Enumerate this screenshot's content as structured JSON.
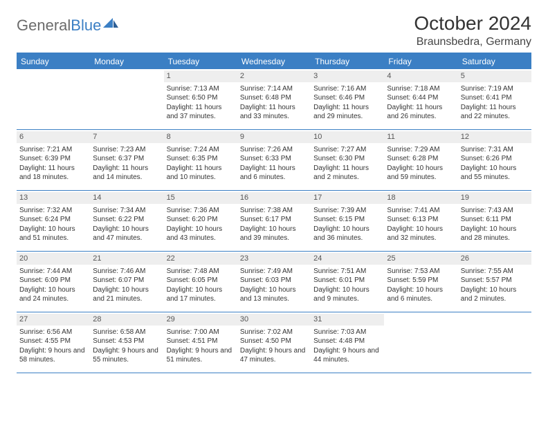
{
  "logo": {
    "text_gray": "General",
    "text_blue": "Blue"
  },
  "title": {
    "month": "October 2024",
    "location": "Braunsbedra, Germany"
  },
  "colors": {
    "header_bg": "#3b7fc4",
    "header_text": "#ffffff",
    "daynum_bg": "#eeeeee",
    "border": "#3b7fc4",
    "body_text": "#333333",
    "logo_gray": "#6b6b6b"
  },
  "weekdays": [
    "Sunday",
    "Monday",
    "Tuesday",
    "Wednesday",
    "Thursday",
    "Friday",
    "Saturday"
  ],
  "weeks": [
    [
      {
        "n": "",
        "sr": "",
        "ss": "",
        "dl": ""
      },
      {
        "n": "",
        "sr": "",
        "ss": "",
        "dl": ""
      },
      {
        "n": "1",
        "sr": "Sunrise: 7:13 AM",
        "ss": "Sunset: 6:50 PM",
        "dl": "Daylight: 11 hours and 37 minutes."
      },
      {
        "n": "2",
        "sr": "Sunrise: 7:14 AM",
        "ss": "Sunset: 6:48 PM",
        "dl": "Daylight: 11 hours and 33 minutes."
      },
      {
        "n": "3",
        "sr": "Sunrise: 7:16 AM",
        "ss": "Sunset: 6:46 PM",
        "dl": "Daylight: 11 hours and 29 minutes."
      },
      {
        "n": "4",
        "sr": "Sunrise: 7:18 AM",
        "ss": "Sunset: 6:44 PM",
        "dl": "Daylight: 11 hours and 26 minutes."
      },
      {
        "n": "5",
        "sr": "Sunrise: 7:19 AM",
        "ss": "Sunset: 6:41 PM",
        "dl": "Daylight: 11 hours and 22 minutes."
      }
    ],
    [
      {
        "n": "6",
        "sr": "Sunrise: 7:21 AM",
        "ss": "Sunset: 6:39 PM",
        "dl": "Daylight: 11 hours and 18 minutes."
      },
      {
        "n": "7",
        "sr": "Sunrise: 7:23 AM",
        "ss": "Sunset: 6:37 PM",
        "dl": "Daylight: 11 hours and 14 minutes."
      },
      {
        "n": "8",
        "sr": "Sunrise: 7:24 AM",
        "ss": "Sunset: 6:35 PM",
        "dl": "Daylight: 11 hours and 10 minutes."
      },
      {
        "n": "9",
        "sr": "Sunrise: 7:26 AM",
        "ss": "Sunset: 6:33 PM",
        "dl": "Daylight: 11 hours and 6 minutes."
      },
      {
        "n": "10",
        "sr": "Sunrise: 7:27 AM",
        "ss": "Sunset: 6:30 PM",
        "dl": "Daylight: 11 hours and 2 minutes."
      },
      {
        "n": "11",
        "sr": "Sunrise: 7:29 AM",
        "ss": "Sunset: 6:28 PM",
        "dl": "Daylight: 10 hours and 59 minutes."
      },
      {
        "n": "12",
        "sr": "Sunrise: 7:31 AM",
        "ss": "Sunset: 6:26 PM",
        "dl": "Daylight: 10 hours and 55 minutes."
      }
    ],
    [
      {
        "n": "13",
        "sr": "Sunrise: 7:32 AM",
        "ss": "Sunset: 6:24 PM",
        "dl": "Daylight: 10 hours and 51 minutes."
      },
      {
        "n": "14",
        "sr": "Sunrise: 7:34 AM",
        "ss": "Sunset: 6:22 PM",
        "dl": "Daylight: 10 hours and 47 minutes."
      },
      {
        "n": "15",
        "sr": "Sunrise: 7:36 AM",
        "ss": "Sunset: 6:20 PM",
        "dl": "Daylight: 10 hours and 43 minutes."
      },
      {
        "n": "16",
        "sr": "Sunrise: 7:38 AM",
        "ss": "Sunset: 6:17 PM",
        "dl": "Daylight: 10 hours and 39 minutes."
      },
      {
        "n": "17",
        "sr": "Sunrise: 7:39 AM",
        "ss": "Sunset: 6:15 PM",
        "dl": "Daylight: 10 hours and 36 minutes."
      },
      {
        "n": "18",
        "sr": "Sunrise: 7:41 AM",
        "ss": "Sunset: 6:13 PM",
        "dl": "Daylight: 10 hours and 32 minutes."
      },
      {
        "n": "19",
        "sr": "Sunrise: 7:43 AM",
        "ss": "Sunset: 6:11 PM",
        "dl": "Daylight: 10 hours and 28 minutes."
      }
    ],
    [
      {
        "n": "20",
        "sr": "Sunrise: 7:44 AM",
        "ss": "Sunset: 6:09 PM",
        "dl": "Daylight: 10 hours and 24 minutes."
      },
      {
        "n": "21",
        "sr": "Sunrise: 7:46 AM",
        "ss": "Sunset: 6:07 PM",
        "dl": "Daylight: 10 hours and 21 minutes."
      },
      {
        "n": "22",
        "sr": "Sunrise: 7:48 AM",
        "ss": "Sunset: 6:05 PM",
        "dl": "Daylight: 10 hours and 17 minutes."
      },
      {
        "n": "23",
        "sr": "Sunrise: 7:49 AM",
        "ss": "Sunset: 6:03 PM",
        "dl": "Daylight: 10 hours and 13 minutes."
      },
      {
        "n": "24",
        "sr": "Sunrise: 7:51 AM",
        "ss": "Sunset: 6:01 PM",
        "dl": "Daylight: 10 hours and 9 minutes."
      },
      {
        "n": "25",
        "sr": "Sunrise: 7:53 AM",
        "ss": "Sunset: 5:59 PM",
        "dl": "Daylight: 10 hours and 6 minutes."
      },
      {
        "n": "26",
        "sr": "Sunrise: 7:55 AM",
        "ss": "Sunset: 5:57 PM",
        "dl": "Daylight: 10 hours and 2 minutes."
      }
    ],
    [
      {
        "n": "27",
        "sr": "Sunrise: 6:56 AM",
        "ss": "Sunset: 4:55 PM",
        "dl": "Daylight: 9 hours and 58 minutes."
      },
      {
        "n": "28",
        "sr": "Sunrise: 6:58 AM",
        "ss": "Sunset: 4:53 PM",
        "dl": "Daylight: 9 hours and 55 minutes."
      },
      {
        "n": "29",
        "sr": "Sunrise: 7:00 AM",
        "ss": "Sunset: 4:51 PM",
        "dl": "Daylight: 9 hours and 51 minutes."
      },
      {
        "n": "30",
        "sr": "Sunrise: 7:02 AM",
        "ss": "Sunset: 4:50 PM",
        "dl": "Daylight: 9 hours and 47 minutes."
      },
      {
        "n": "31",
        "sr": "Sunrise: 7:03 AM",
        "ss": "Sunset: 4:48 PM",
        "dl": "Daylight: 9 hours and 44 minutes."
      },
      {
        "n": "",
        "sr": "",
        "ss": "",
        "dl": ""
      },
      {
        "n": "",
        "sr": "",
        "ss": "",
        "dl": ""
      }
    ]
  ]
}
